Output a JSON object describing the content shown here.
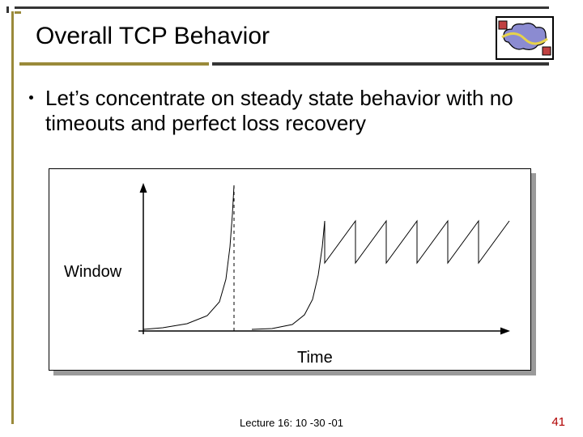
{
  "title": "Overall TCP Behavior",
  "bullet": "Let’s concentrate on steady state behavior with no timeouts and perfect loss recovery",
  "chart": {
    "type": "line",
    "xlabel": "Time",
    "ylabel": "Window",
    "axis_color": "#000000",
    "curve_color": "#000000",
    "curve_width": 1,
    "dashed_color": "#000000",
    "background_color": "#ffffff",
    "shadow_color": "#9a9a9a",
    "border_color": "#000000",
    "xlim": [
      0,
      460
    ],
    "ylim": [
      0,
      190
    ],
    "slow_start_1": [
      [
        6,
        182
      ],
      [
        30,
        180
      ],
      [
        60,
        175
      ],
      [
        85,
        165
      ],
      [
        100,
        148
      ],
      [
        108,
        120
      ],
      [
        113,
        80
      ],
      [
        116,
        40
      ],
      [
        118,
        4
      ]
    ],
    "timeout_dashed_x": 118,
    "slow_start_2": [
      [
        140,
        182
      ],
      [
        165,
        181
      ],
      [
        190,
        176
      ],
      [
        205,
        164
      ],
      [
        215,
        145
      ],
      [
        222,
        115
      ],
      [
        227,
        80
      ],
      [
        230,
        48
      ]
    ],
    "sawtooth": {
      "start_x": 230,
      "low_y": 100,
      "high_y": 48,
      "period": 38,
      "cycles": 6
    },
    "title_fontsize": 30,
    "bullet_fontsize": 26,
    "label_fontsize": 20
  },
  "logo": {
    "cloud_fill": "#8b8bd1",
    "cloud_stroke": "#000000",
    "wave_color": "#e6d24a",
    "node_fill": "#c04040",
    "node_stroke": "#000000"
  },
  "footer": "Lecture 16: 10 -30 -01",
  "page_number": "41",
  "rules": {
    "dark": "#353535",
    "accent": "#9a8a3a"
  }
}
